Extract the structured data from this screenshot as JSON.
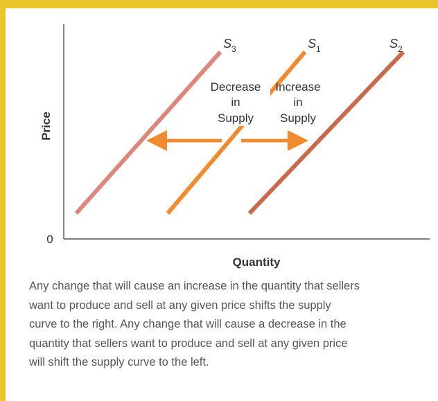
{
  "diagram": {
    "y_axis_label": "Price",
    "x_axis_label": "Quantity",
    "origin_label": "0",
    "curves": [
      {
        "letter": "S",
        "subscript": "3"
      },
      {
        "letter": "S",
        "subscript": "1"
      },
      {
        "letter": "S",
        "subscript": "2"
      }
    ],
    "annotations": [
      [
        "Decrease",
        "in",
        "Supply"
      ],
      [
        "Increase",
        "in",
        "Supply"
      ]
    ]
  },
  "caption": [
    "Any change that will cause an increase in the quantity that sellers",
    "want to produce and sell at any given price shifts the supply",
    "curve to the right. Any change that will cause a decrease in the",
    "quantity that sellers want to produce and sell at any given price",
    "will shift the supply curve to the left."
  ]
}
